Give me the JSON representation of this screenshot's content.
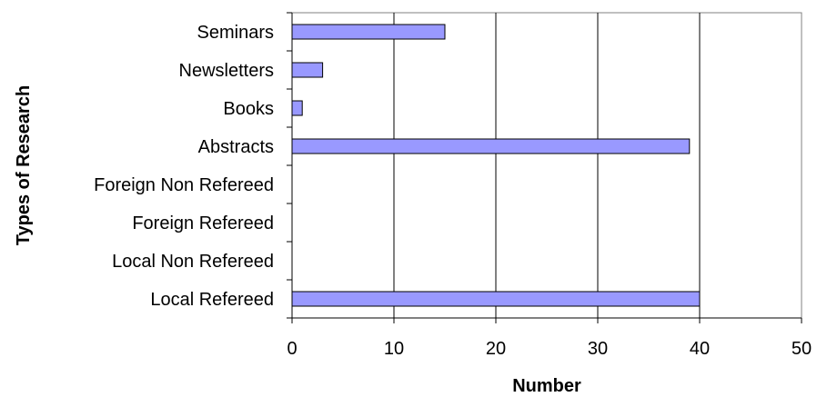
{
  "chart_data": {
    "type": "bar",
    "orientation": "horizontal",
    "categories": [
      "Seminars",
      "Newsletters",
      "Books",
      "Abstracts",
      "Foreign Non Refereed",
      "Foreign Refereed",
      "Local Non Refereed",
      "Local Refereed"
    ],
    "values": [
      15,
      3,
      1,
      39,
      0,
      0,
      0,
      40
    ],
    "title": "",
    "xlabel": "Number",
    "ylabel": "Types of Research",
    "xlim": [
      0,
      50
    ],
    "xticks": [
      0,
      10,
      20,
      30,
      40,
      50
    ],
    "grid": "vertical",
    "legend": "none",
    "bar_color": "#9999ff"
  }
}
